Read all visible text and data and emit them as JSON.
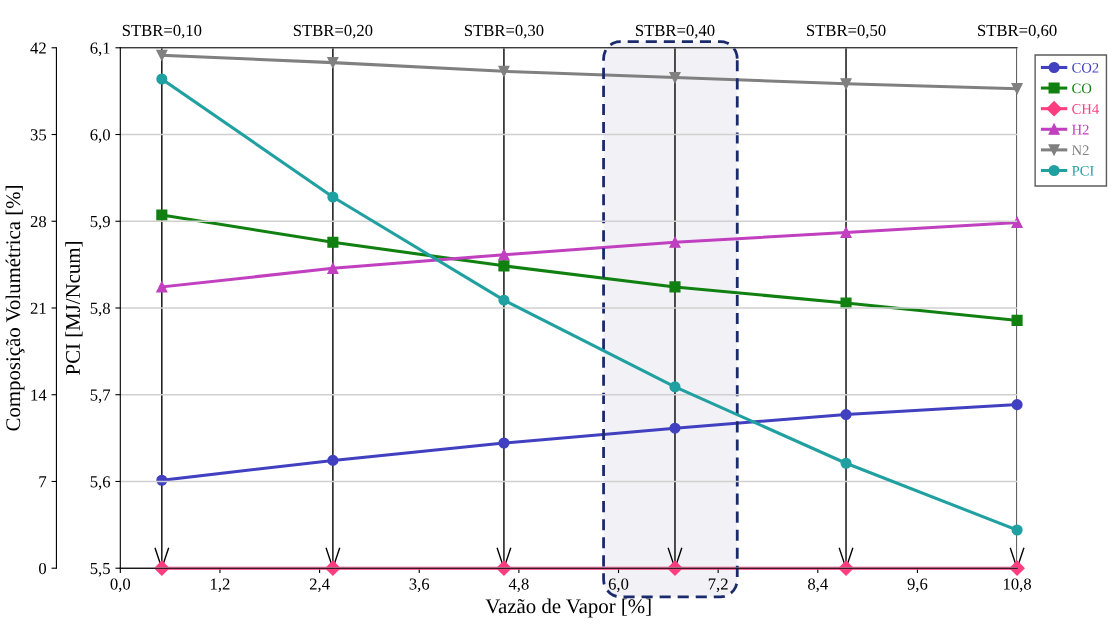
{
  "chart_data": {
    "type": "line",
    "xlabel": "Vazão de Vapor [%]",
    "ylabel": "Composição Volumétrica [%]",
    "y2label": "PCI [MJ/Ncum]",
    "x": [
      0.5,
      2.56,
      4.62,
      6.68,
      8.74,
      10.8
    ],
    "xlim": [
      0,
      10.8
    ],
    "xticks": [
      {
        "value": 0,
        "label": "0,0"
      },
      {
        "value": 1.2,
        "label": "1,2"
      },
      {
        "value": 2.4,
        "label": "2,4"
      },
      {
        "value": 3.6,
        "label": "3,6"
      },
      {
        "value": 4.8,
        "label": "4,8"
      },
      {
        "value": 6.0,
        "label": "6,0"
      },
      {
        "value": 7.2,
        "label": "7,2"
      },
      {
        "value": 8.4,
        "label": "8,4"
      },
      {
        "value": 9.6,
        "label": "9,6"
      },
      {
        "value": 10.8,
        "label": "10,8"
      }
    ],
    "ylim": [
      0,
      42
    ],
    "yticks": [
      0,
      7,
      14,
      21,
      28,
      35,
      42
    ],
    "y2lim": [
      5.5,
      6.1
    ],
    "y2ticks": [
      {
        "value": 5.5,
        "label": "5,5"
      },
      {
        "value": 5.6,
        "label": "5,6"
      },
      {
        "value": 5.7,
        "label": "5,7"
      },
      {
        "value": 5.8,
        "label": "5,8"
      },
      {
        "value": 5.9,
        "label": "5,9"
      },
      {
        "value": 6.0,
        "label": "6,0"
      },
      {
        "value": 6.1,
        "label": "6,1"
      }
    ],
    "series": [
      {
        "name": "CO2",
        "color": "#4040c0",
        "marker": "circle",
        "values": [
          7.1,
          8.7,
          10.1,
          11.3,
          12.4,
          13.2
        ]
      },
      {
        "name": "CO",
        "color": "#108010",
        "marker": "square",
        "values": [
          28.5,
          26.3,
          24.4,
          22.7,
          21.4,
          20.0
        ]
      },
      {
        "name": "CH4",
        "color": "#ff3d7f",
        "marker": "diamond",
        "values": [
          0,
          0,
          0,
          0,
          0,
          0
        ]
      },
      {
        "name": "H2",
        "color": "#c040c0",
        "marker": "triangle",
        "values": [
          22.7,
          24.2,
          25.3,
          26.3,
          27.1,
          27.9
        ]
      },
      {
        "name": "N2",
        "color": "#808080",
        "marker": "triangle_down",
        "values": [
          41.4,
          40.8,
          40.1,
          39.6,
          39.1,
          38.7
        ]
      },
      {
        "name": "PCI",
        "color": "#20a0a0",
        "marker": "circle",
        "axis": "y2",
        "values": [
          6.064,
          5.928,
          5.809,
          5.709,
          5.621,
          5.544
        ]
      }
    ],
    "ref_lines": [
      {
        "axis": "x",
        "value": 0.5,
        "color": "#000000"
      },
      {
        "axis": "x",
        "value": 2.56,
        "color": "#000000"
      },
      {
        "axis": "x",
        "value": 4.62,
        "color": "#000000"
      },
      {
        "axis": "x",
        "value": 6.68,
        "color": "#000000"
      },
      {
        "axis": "x",
        "value": 8.74,
        "color": "#000000"
      },
      {
        "axis": "x",
        "value": 10.8,
        "color": "#000000"
      }
    ],
    "annotations": [
      {
        "text": "STBR=0,10",
        "x": 0.5,
        "y": 42
      },
      {
        "text": "STBR=0,20",
        "x": 2.56,
        "y": 42
      },
      {
        "text": "STBR=0,30",
        "x": 4.62,
        "y": 42
      },
      {
        "text": "STBR=0,40",
        "x": 6.68,
        "y": 42
      },
      {
        "text": "STBR=0,50",
        "x": 8.74,
        "y": 42
      },
      {
        "text": "STBR=0,60",
        "x": 10.8,
        "y": 42
      }
    ],
    "bands": [
      {
        "axis": "x",
        "from": 5.82,
        "to": 7.43,
        "color": "#1a2a6c"
      }
    ],
    "grid": "y",
    "legend": "right"
  }
}
